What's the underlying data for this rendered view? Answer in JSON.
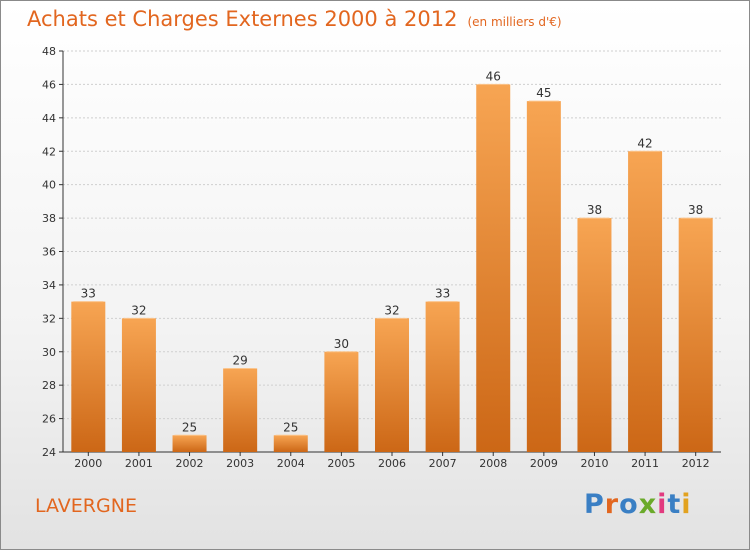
{
  "header": {
    "title": "Achats et Charges Externes 2000 à 2012",
    "unit": "(en milliers d'€)"
  },
  "commune": "LAVERGNE",
  "logo": {
    "text": "Proxiti",
    "colors": [
      "#3a7fc4",
      "#e2661f",
      "#3a7fc4",
      "#6aaa2a",
      "#e23a7f",
      "#3a7fc4",
      "#e2a21f"
    ]
  },
  "colors": {
    "bar_top": "#f7a553",
    "bar_bottom": "#cc6716",
    "text": "#e2661f",
    "axis": "#333333"
  },
  "chart_data": {
    "type": "bar",
    "categories": [
      "2000",
      "2001",
      "2002",
      "2003",
      "2004",
      "2005",
      "2006",
      "2007",
      "2008",
      "2009",
      "2010",
      "2011",
      "2012"
    ],
    "values": [
      33,
      32,
      25,
      29,
      25,
      30,
      32,
      33,
      46,
      45,
      38,
      42,
      38
    ],
    "title": "Achats et Charges Externes 2000 à 2012",
    "ylim": [
      24,
      48
    ],
    "yticks": [
      24,
      26,
      28,
      30,
      32,
      34,
      36,
      38,
      40,
      42,
      44,
      46,
      48
    ],
    "grid": true
  }
}
